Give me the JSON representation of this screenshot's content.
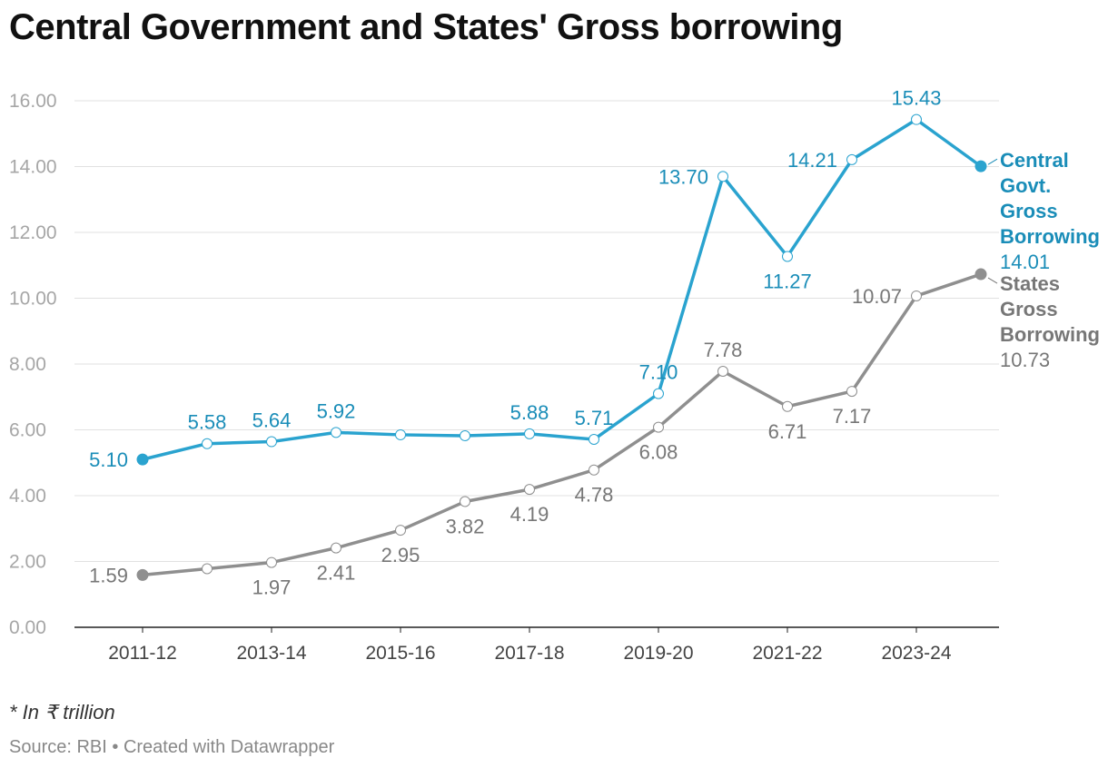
{
  "title": "Central Government and States' Gross borrowing",
  "note": "* In ₹ trillion",
  "source": "Source: RBI • Created with Datawrapper",
  "colors": {
    "central": "#2aa3cf",
    "central_label": "#1a8db8",
    "states": "#8f8f8f",
    "states_label": "#777777"
  },
  "chart_data": {
    "type": "line",
    "title": "Central Government and States' Gross borrowing",
    "ylim": [
      0,
      16
    ],
    "y_ticks": [
      "0.00",
      "2.00",
      "4.00",
      "6.00",
      "8.00",
      "10.00",
      "12.00",
      "14.00",
      "16.00"
    ],
    "x_tick_labels": [
      "2011-12",
      "2013-14",
      "2015-16",
      "2017-18",
      "2019-20",
      "2021-22",
      "2023-24"
    ],
    "x_tick_positions": [
      0,
      2,
      4,
      6,
      8,
      10,
      12
    ],
    "x_count": 14,
    "series": [
      {
        "name": "Central Govt. Gross Borrowing",
        "end_label_lines": [
          "Central",
          "Govt.",
          "Gross",
          "Borrowing"
        ],
        "end_value": "14.01",
        "values": [
          5.1,
          5.58,
          5.64,
          5.92,
          5.85,
          5.82,
          5.88,
          5.71,
          7.1,
          13.7,
          11.27,
          14.21,
          15.43,
          14.01
        ],
        "labels": [
          "5.10",
          "5.58",
          "5.64",
          "5.92",
          null,
          null,
          "5.88",
          "5.71",
          "7.10",
          "13.70",
          "11.27",
          "14.21",
          "15.43",
          null
        ],
        "label_pos": [
          "left",
          "above",
          "above",
          "above",
          null,
          null,
          "above",
          "above",
          "above",
          "left",
          "below",
          "left",
          "above",
          null
        ]
      },
      {
        "name": "States Gross Borrowing",
        "end_label_lines": [
          "States",
          "Gross",
          "Borrowing"
        ],
        "end_value": "10.73",
        "values": [
          1.59,
          1.78,
          1.97,
          2.41,
          2.95,
          3.82,
          4.19,
          4.78,
          6.08,
          7.78,
          6.71,
          7.17,
          10.07,
          10.73
        ],
        "labels": [
          "1.59",
          null,
          "1.97",
          "2.41",
          "2.95",
          "3.82",
          "4.19",
          "4.78",
          "6.08",
          "7.78",
          "6.71",
          "7.17",
          "10.07",
          null
        ],
        "label_pos": [
          "left",
          null,
          "below",
          "below",
          "below",
          "below",
          "below",
          "below",
          "below",
          "above",
          "below",
          "below",
          "left",
          null
        ]
      }
    ]
  }
}
